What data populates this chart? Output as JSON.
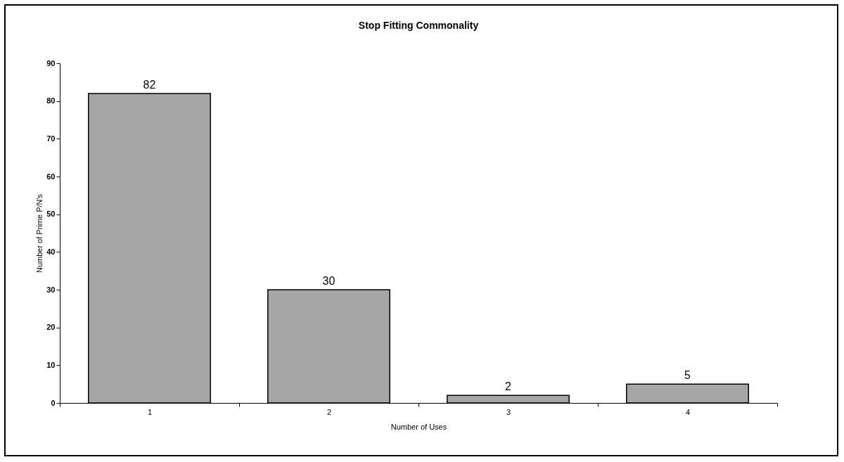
{
  "chart_data": {
    "type": "bar",
    "title": "Stop Fitting Commonality",
    "xlabel": "Number of Uses",
    "ylabel": "Number of Prime P/N's",
    "categories": [
      "1",
      "2",
      "3",
      "4"
    ],
    "values": [
      82,
      30,
      2,
      5
    ],
    "color": "#a6a6a6",
    "ylim": [
      0,
      90
    ],
    "yticks": [
      0,
      10,
      20,
      30,
      40,
      50,
      60,
      70,
      80,
      90
    ],
    "grid": false,
    "data_labels": true
  }
}
